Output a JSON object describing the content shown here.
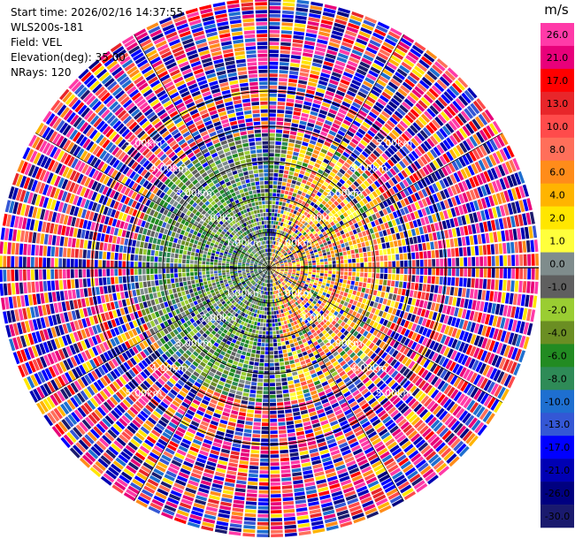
{
  "header": {
    "start_time": "Start time: 2026/02/16 14:37:55",
    "instrument": "WLS200s-181",
    "field": "Field: VEL",
    "elevation": "Elevation(deg): 35.00",
    "nrays": "NRays: 120"
  },
  "chart_data": {
    "type": "heatmap",
    "subtype": "ppi-polar",
    "field": "VEL",
    "units": "m/s",
    "n_rays": 120,
    "range_rings_km": [
      1.0,
      2.0,
      3.0,
      4.0,
      5.0
    ],
    "ring_labels": [
      "1.00km",
      "2.00km",
      "3.00km",
      "4.00km",
      "5.00km"
    ],
    "colorbar": {
      "label": "m/s",
      "ticks": [
        "26.0",
        "21.0",
        "17.0",
        "13.0",
        "10.0",
        "8.0",
        "6.0",
        "4.0",
        "2.0",
        "1.0",
        "0.0",
        "-1.0",
        "-2.0",
        "-4.0",
        "-6.0",
        "-8.0",
        "-10.0",
        "-13.0",
        "-17.0",
        "-21.0",
        "-26.0",
        "-30.0"
      ],
      "colors": [
        "#ff3aa8",
        "#e8007a",
        "#ff0000",
        "#e8262a",
        "#ff4b4b",
        "#ff6f5a",
        "#ff8c1a",
        "#ffb400",
        "#ffe600",
        "#ffff3c",
        "#7f8c8c",
        "#5f5f5f",
        "#9acd32",
        "#6b8e23",
        "#228b22",
        "#2e8b57",
        "#1e6fd0",
        "#3457d5",
        "#0000ff",
        "#0000b4",
        "#000080",
        "#1a1a6e"
      ]
    }
  }
}
